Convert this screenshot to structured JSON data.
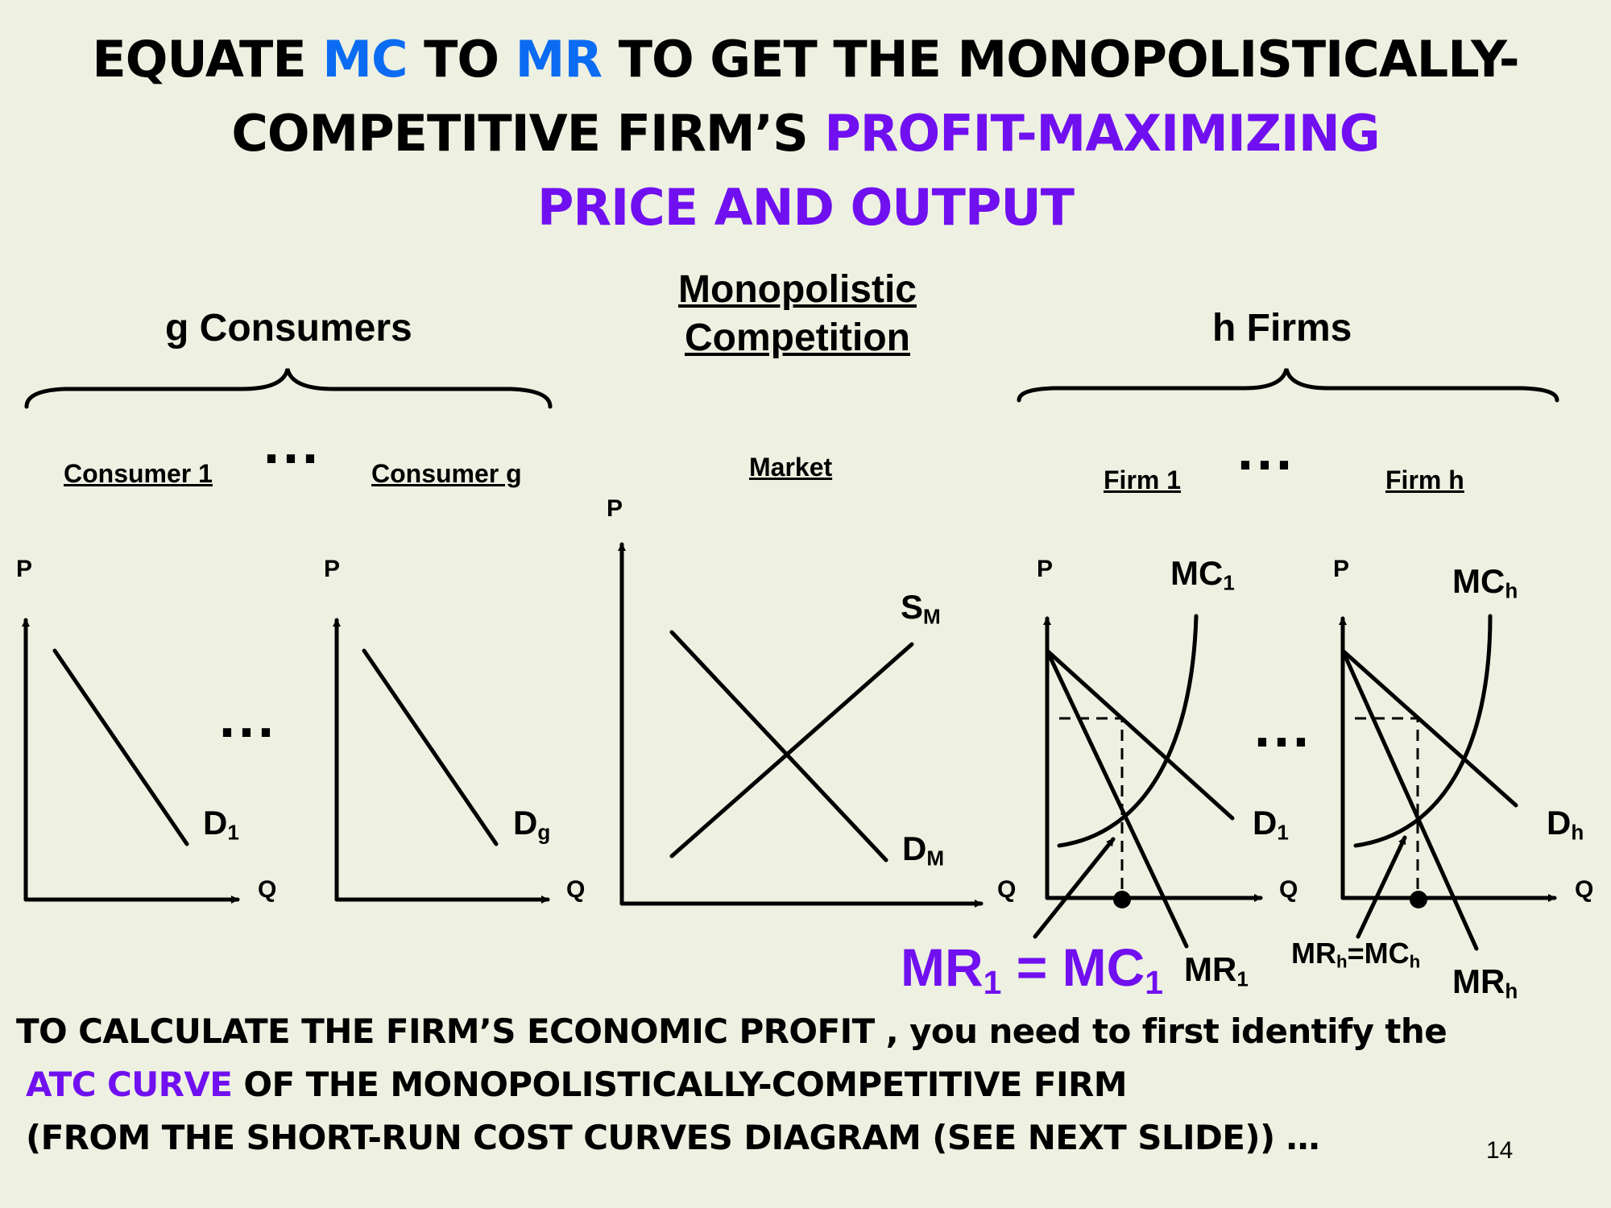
{
  "slide": {
    "title": {
      "p1": "EQUATE ",
      "mc": "MC",
      "p2": " TO ",
      "mr": "MR",
      "p3": " TO GET THE MONOPOLISTICALLY-",
      "p4": "COMPETITIVE FIRM’S ",
      "profit_max": "PROFIT-MAXIMIZING",
      "price_output": "PRICE AND OUTPUT"
    },
    "groups": {
      "consumers": "g Consumers",
      "firms": "h Firms"
    },
    "center_title": {
      "line1": "Monopolistic",
      "line2": "Competition"
    },
    "ellipsis": "...",
    "panels": {
      "consumer1": {
        "title": "Consumer 1",
        "p": "P",
        "q": "Q",
        "demand": "D",
        "demand_sub": "1"
      },
      "consumerg": {
        "title": "Consumer g",
        "p": "P",
        "q": "Q",
        "demand": "D",
        "demand_sub": "g"
      },
      "market": {
        "title": "Market",
        "p": "P",
        "q": "Q",
        "supply": "S",
        "supply_sub": "M",
        "demand": "D",
        "demand_sub": "M"
      },
      "firm1": {
        "title": "Firm 1",
        "p": "P",
        "q": "Q",
        "mc": "MC",
        "mc_sub": "1",
        "demand": "D",
        "demand_sub": "1",
        "mr": "MR",
        "mr_sub": "1"
      },
      "firmh": {
        "title": "Firm h",
        "p": "P",
        "q": "Q",
        "mc": "MC",
        "mc_sub": "h",
        "demand": "D",
        "demand_sub": "h",
        "mr": "MR",
        "mr_sub": "h"
      }
    },
    "annotations": {
      "firm1_eq": {
        "a": "MR",
        "a_sub": "1",
        "eq": " = ",
        "b": "MC",
        "b_sub": "1"
      },
      "firmh_eq": {
        "a": "MR",
        "a_sub": "h",
        "eq": "=",
        "b": "MC",
        "b_sub": "h"
      }
    },
    "bottom": {
      "line1": "TO CALCULATE THE FIRM’S ECONOMIC PROFIT , you need to first identify the",
      "atc": "ATC CURVE",
      "line2_rest": " OF THE MONOPOLISTICALLY-COMPETITIVE FIRM",
      "line3": "(FROM THE SHORT-RUN COST CURVES DIAGRAM (SEE NEXT SLIDE)) …"
    },
    "page_number": "14",
    "colors": {
      "background": "#eef0e1",
      "blue": "#0b6bf2",
      "purple": "#7010f0"
    }
  }
}
